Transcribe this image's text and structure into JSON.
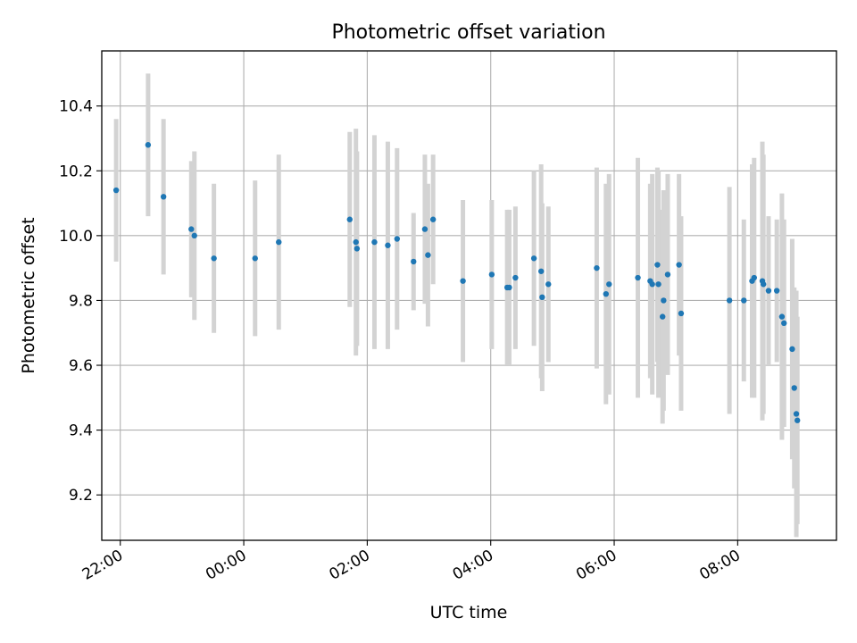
{
  "chart_data": {
    "type": "scatter",
    "title": "Photometric offset variation",
    "xlabel": "UTC time",
    "ylabel": "Photometric offset",
    "grid": true,
    "legend": "none",
    "xlim": [
      "21:42",
      "09:36"
    ],
    "ylim": [
      9.06,
      10.57
    ],
    "x_ticks": [
      "22:00",
      "00:00",
      "02:00",
      "04:00",
      "06:00",
      "08:00"
    ],
    "y_ticks": [
      "9.2",
      "9.4",
      "9.6",
      "9.8",
      "10.0",
      "10.2",
      "10.4"
    ],
    "marker_color": "#1f77b4",
    "errorbar_color": "#d3d3d3",
    "series": [
      {
        "x": [
          "21:56",
          "22:27",
          "22:42",
          "23:09",
          "23:12",
          "23:31",
          "00:11",
          "00:34",
          "01:43",
          "01:49",
          "01:50",
          "02:07",
          "02:20",
          "02:29",
          "02:45",
          "02:56",
          "02:59",
          "03:04",
          "03:33",
          "04:01",
          "04:16",
          "04:18",
          "04:24",
          "04:42",
          "04:49",
          "04:50",
          "04:56",
          "05:43",
          "05:52",
          "05:55",
          "06:23",
          "06:35",
          "06:37",
          "06:42",
          "06:43",
          "06:47",
          "06:48",
          "06:52",
          "07:03",
          "07:05",
          "07:52",
          "08:06",
          "08:14",
          "08:16",
          "08:24",
          "08:25",
          "08:30",
          "08:38",
          "08:43",
          "08:45",
          "08:53",
          "08:55",
          "08:57",
          "08:58"
        ],
        "y": [
          10.14,
          10.28,
          10.12,
          10.02,
          10.0,
          9.93,
          9.93,
          9.98,
          10.05,
          9.98,
          9.96,
          9.98,
          9.97,
          9.99,
          9.92,
          10.02,
          9.94,
          10.05,
          9.86,
          9.88,
          9.84,
          9.84,
          9.87,
          9.93,
          9.89,
          9.81,
          9.85,
          9.9,
          9.82,
          9.85,
          9.87,
          9.86,
          9.85,
          9.91,
          9.85,
          9.75,
          9.8,
          9.88,
          9.91,
          9.76,
          9.8,
          9.8,
          9.86,
          9.87,
          9.86,
          9.85,
          9.83,
          9.83,
          9.75,
          9.73,
          9.65,
          9.53,
          9.45,
          9.43
        ],
        "yerr": [
          0.22,
          0.22,
          0.24,
          0.21,
          0.26,
          0.23,
          0.24,
          0.27,
          0.27,
          0.35,
          0.3,
          0.33,
          0.32,
          0.28,
          0.15,
          0.23,
          0.22,
          0.2,
          0.25,
          0.23,
          0.24,
          0.24,
          0.22,
          0.27,
          0.33,
          0.29,
          0.24,
          0.31,
          0.34,
          0.34,
          0.37,
          0.3,
          0.34,
          0.3,
          0.35,
          0.33,
          0.34,
          0.31,
          0.28,
          0.3,
          0.35,
          0.25,
          0.36,
          0.37,
          0.43,
          0.4,
          0.23,
          0.22,
          0.38,
          0.32,
          0.34,
          0.31,
          0.38,
          0.32
        ]
      }
    ]
  }
}
